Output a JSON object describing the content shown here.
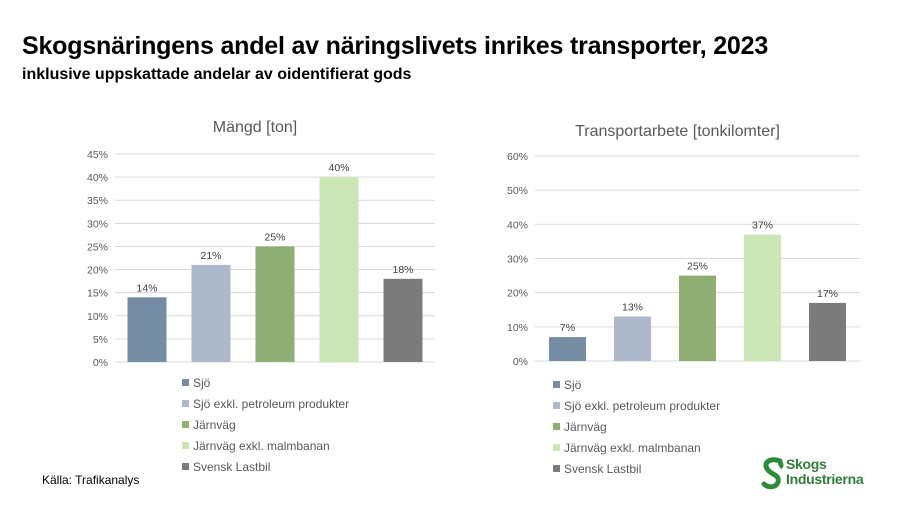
{
  "header": {
    "title": "Skogsnäringens andel av näringslivets inrikes transporter, 2023",
    "subtitle": "inklusive uppskattade andelar av oidentifierat gods"
  },
  "source": "Källa: Trafikanalys",
  "logo": {
    "line1": "Skogs",
    "line2": "Industrierna",
    "icon": "s-leaf-icon",
    "color": "#2e8b3a"
  },
  "colors": {
    "Sjö": "#768ba4",
    "Sjö exkl. petroleum produkter": "#adb9ca",
    "Järnväg": "#8fae74",
    "Järnväg exkl. malmbanan": "#c9e6b4",
    "Svensk Lastbil": "#7b7b7b"
  },
  "chart_data": [
    {
      "type": "bar",
      "title": "Mängd [ton]",
      "categories": [
        "Sjö",
        "Sjö exkl. petroleum produkter",
        "Järnväg",
        "Järnväg exkl. malmbanan",
        "Svensk Lastbil"
      ],
      "values": [
        14,
        21,
        25,
        40,
        18
      ],
      "value_labels": [
        "14%",
        "21%",
        "25%",
        "40%",
        "18%"
      ],
      "ylim": [
        0,
        45
      ],
      "yticks": [
        "0%",
        "5%",
        "10%",
        "15%",
        "20%",
        "25%",
        "30%",
        "35%",
        "40%",
        "45%"
      ],
      "ytick_values": [
        0,
        5,
        10,
        15,
        20,
        25,
        30,
        35,
        40,
        45
      ],
      "grid": true,
      "legend": "bottom"
    },
    {
      "type": "bar",
      "title": "Transportarbete [tonkilomter]",
      "categories": [
        "Sjö",
        "Sjö exkl. petroleum produkter",
        "Järnväg",
        "Järnväg exkl. malmbanan",
        "Svensk Lastbil"
      ],
      "values": [
        7,
        13,
        25,
        37,
        17
      ],
      "value_labels": [
        "7%",
        "13%",
        "25%",
        "37%",
        "17%"
      ],
      "ylim": [
        0,
        60
      ],
      "yticks": [
        "0%",
        "10%",
        "20%",
        "30%",
        "40%",
        "50%",
        "60%"
      ],
      "ytick_values": [
        0,
        10,
        20,
        30,
        40,
        50,
        60
      ],
      "grid": true,
      "legend": "bottom"
    }
  ]
}
